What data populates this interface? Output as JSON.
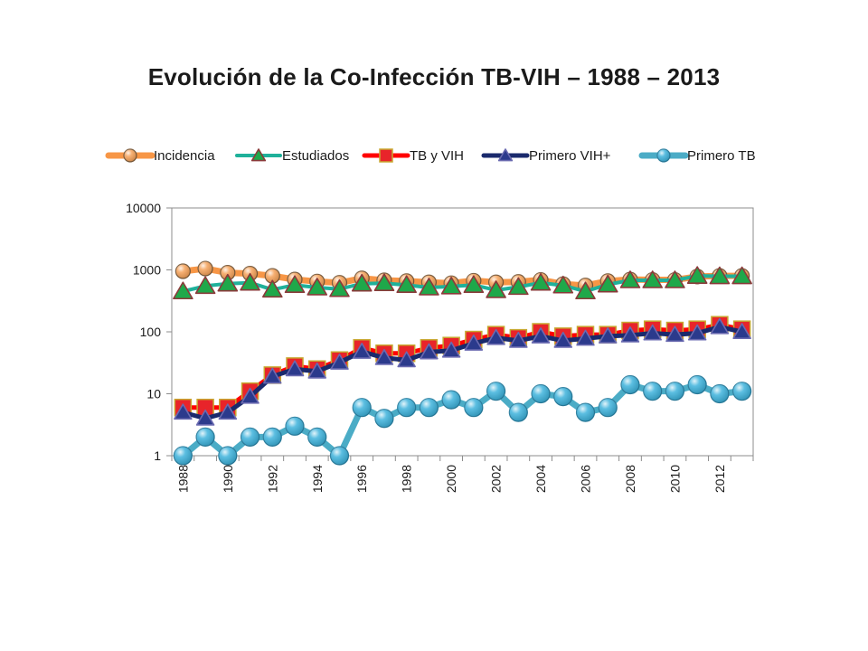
{
  "chart_data": {
    "type": "line",
    "title": "Evolución de la Co-Infección TB-VIH – 1988 – 2013",
    "xlabel": "",
    "ylabel": "",
    "y_scale": "log",
    "ylim": [
      1,
      10000
    ],
    "y_ticks": [
      "1",
      "10",
      "100",
      "1000",
      "10000"
    ],
    "x": [
      1988,
      1989,
      1990,
      1991,
      1992,
      1993,
      1994,
      1995,
      1996,
      1997,
      1998,
      1999,
      2000,
      2001,
      2002,
      2003,
      2004,
      2005,
      2006,
      2007,
      2008,
      2009,
      2010,
      2011,
      2012,
      2013
    ],
    "x_tick_labels": [
      "1988",
      "1990",
      "1992",
      "1994",
      "1996",
      "1998",
      "2000",
      "2002",
      "2004",
      "2006",
      "2008",
      "2010",
      "2012"
    ],
    "legend_position": "top",
    "grid": false,
    "series": [
      {
        "name": "Incidencia",
        "color": "#f79646",
        "marker": "circle",
        "marker_color": "#f5a25a",
        "values": [
          950,
          1050,
          900,
          870,
          800,
          700,
          650,
          620,
          730,
          680,
          660,
          630,
          610,
          670,
          630,
          640,
          690,
          590,
          560,
          660,
          700,
          690,
          690,
          780,
          800,
          800
        ]
      },
      {
        "name": "Estudiados",
        "color": "#1fb19a",
        "marker": "triangle",
        "marker_color": "#1fa84a",
        "values": [
          450,
          550,
          600,
          620,
          480,
          570,
          520,
          490,
          600,
          610,
          570,
          520,
          540,
          570,
          470,
          530,
          620,
          560,
          450,
          580,
          680,
          680,
          680,
          800,
          790,
          790
        ]
      },
      {
        "name": "TB y VIH",
        "color": "#ff0000",
        "marker": "square",
        "marker_color": "#e8242a",
        "values": [
          6,
          6,
          6,
          11,
          20,
          28,
          25,
          35,
          55,
          45,
          45,
          55,
          60,
          75,
          90,
          80,
          100,
          85,
          90,
          90,
          105,
          110,
          105,
          110,
          130,
          110
        ]
      },
      {
        "name": "Primero VIH+",
        "color": "#1a2a6c",
        "marker": "triangle",
        "marker_color": "#2b3a8c",
        "values": [
          5,
          4,
          5,
          9,
          19,
          25,
          23,
          32,
          48,
          38,
          35,
          47,
          50,
          65,
          80,
          72,
          85,
          72,
          78,
          85,
          88,
          95,
          90,
          95,
          120,
          100
        ]
      },
      {
        "name": "Primero TB",
        "color": "#4bacc6",
        "marker": "circle",
        "marker_color": "#3fb3dc",
        "values": [
          1,
          2,
          1,
          2,
          2,
          3,
          2,
          1,
          6,
          4,
          6,
          6,
          8,
          6,
          11,
          5,
          10,
          9,
          5,
          6,
          14,
          11,
          11,
          14,
          10,
          11
        ]
      }
    ]
  }
}
